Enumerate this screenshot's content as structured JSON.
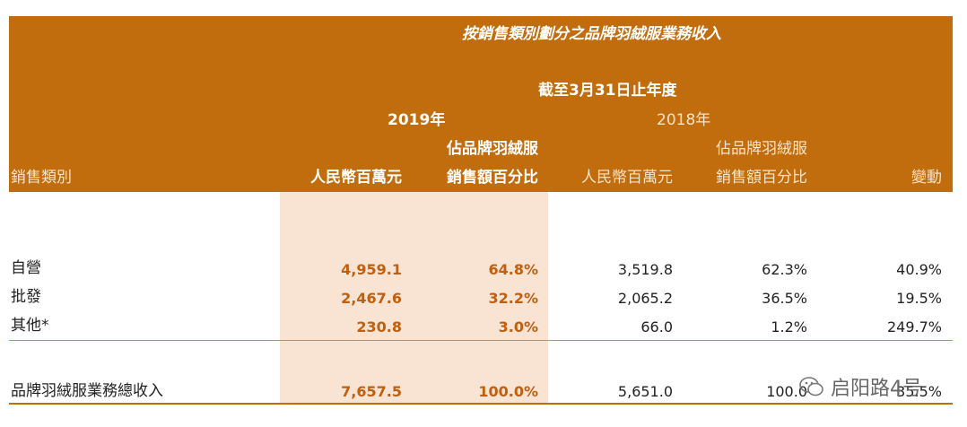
{
  "table": {
    "title": "按銷售類別劃分之品牌羽絨服業務收入",
    "period": "截至3月31日止年度",
    "year_2019": "2019年",
    "year_2018": "2018年",
    "col_category": "銷售類別",
    "col_rmb_2019": "人民幣百萬元",
    "col_pct_2019_line1": "佔品牌羽絨服",
    "col_pct_2019_line2": "銷售額百分比",
    "col_rmb_2018": "人民幣百萬元",
    "col_pct_2018_line1": "佔品牌羽絨服",
    "col_pct_2018_line2": "銷售額百分比",
    "col_change": "變動",
    "rows": [
      {
        "label": "自營",
        "rmb_2019": "4,959.1",
        "pct_2019": "64.8%",
        "rmb_2018": "3,519.8",
        "pct_2018": "62.3%",
        "change": "40.9%"
      },
      {
        "label": "批發",
        "rmb_2019": "2,467.6",
        "pct_2019": "32.2%",
        "rmb_2018": "2,065.2",
        "pct_2018": "36.5%",
        "change": "19.5%"
      },
      {
        "label": "其他*",
        "rmb_2019": "230.8",
        "pct_2019": "3.0%",
        "rmb_2018": "66.0",
        "pct_2018": "1.2%",
        "change": "249.7%"
      }
    ],
    "total": {
      "label": "品牌羽絨服業務總收入",
      "rmb_2019": "7,657.5",
      "pct_2019": "100.0%",
      "rmb_2018": "5,651.0",
      "pct_2018": "100.0",
      "change": "35.5%"
    }
  },
  "watermark": {
    "text": "启阳路4号",
    "icon": "wechat-icon"
  }
}
